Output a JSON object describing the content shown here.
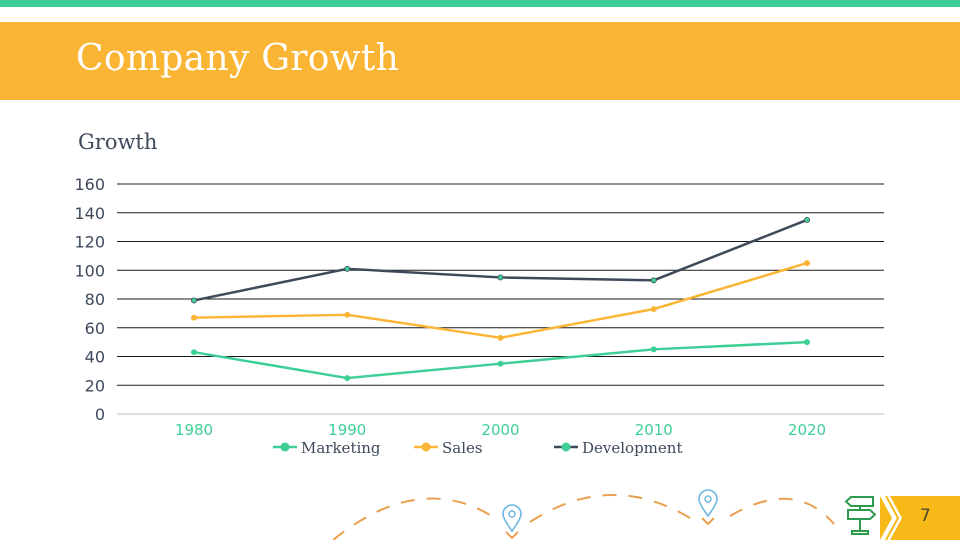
{
  "slide": {
    "title": "Company Growth",
    "page_number": "7",
    "colors": {
      "top_bar": "#3ecf96",
      "header": "#fbb535",
      "badge": "#f6b918",
      "dash_path": "#e9a050",
      "pin": "#6cb6e0",
      "signpost": "#2e9a4e"
    },
    "decorations": [
      "map-pin-icon",
      "map-pin-icon",
      "signpost-icon"
    ]
  },
  "chart_data": {
    "type": "line",
    "title": "Growth",
    "xlabel": "",
    "ylabel": "",
    "categories": [
      "1980",
      "1990",
      "2000",
      "2010",
      "2020"
    ],
    "ylim": [
      0,
      160
    ],
    "yticks": [
      0,
      20,
      40,
      60,
      80,
      100,
      120,
      140,
      160
    ],
    "grid": true,
    "legend_position": "bottom",
    "series": [
      {
        "name": "Marketing",
        "color": "#3ecf96",
        "marker_color": "#3ecf96",
        "values": [
          43,
          25,
          35,
          45,
          50
        ]
      },
      {
        "name": "Sales",
        "color": "#fbb535",
        "marker_color": "#fbb535",
        "values": [
          67,
          69,
          53,
          73,
          105
        ]
      },
      {
        "name": "Development",
        "color": "#3e4a5a",
        "marker_color": "#3ecf96",
        "values": [
          79,
          101,
          95,
          93,
          135
        ]
      }
    ]
  }
}
